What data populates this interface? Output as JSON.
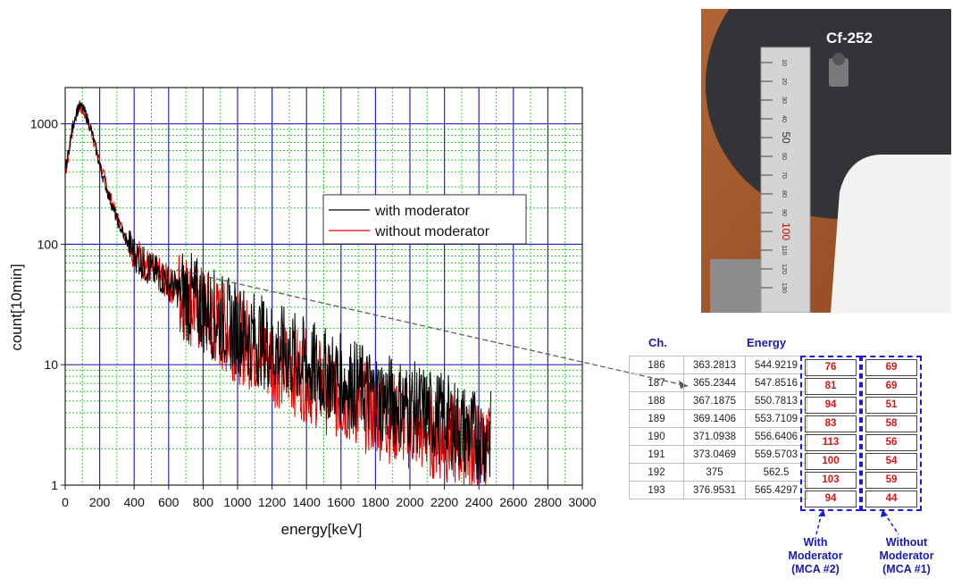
{
  "chart_data": {
    "type": "line",
    "xlabel": "energy[keV]",
    "ylabel": "count[10min]",
    "xlim": [
      0,
      3000
    ],
    "ylim": [
      1,
      2000
    ],
    "yscale": "log",
    "grid": true,
    "legend_position": "top-center",
    "x_ticks": [
      "0",
      "200",
      "400",
      "600",
      "800",
      "1000",
      "1200",
      "1400",
      "1600",
      "1800",
      "2000",
      "2200",
      "2400",
      "2600",
      "2800",
      "3000"
    ],
    "y_ticks": [
      "1",
      "10",
      "100",
      "1000"
    ],
    "series": [
      {
        "name": "with moderator",
        "color": "#000000",
        "x": [
          0,
          20,
          40,
          60,
          80,
          100,
          120,
          150,
          180,
          200,
          250,
          300,
          350,
          400,
          450,
          500,
          550,
          600,
          650,
          700,
          800,
          900,
          1000,
          1100,
          1200,
          1300,
          1400,
          1500,
          1600,
          1700,
          1800,
          1900,
          2000,
          2100,
          2200,
          2300,
          2400,
          2470
        ],
        "y": [
          400,
          600,
          900,
          1200,
          1400,
          1350,
          1200,
          900,
          600,
          450,
          260,
          160,
          110,
          85,
          70,
          60,
          55,
          48,
          42,
          38,
          30,
          24,
          20,
          17,
          14,
          12,
          10,
          8.5,
          7.5,
          6.5,
          5.5,
          5,
          4.5,
          4,
          3.5,
          3,
          2.5,
          2.5
        ]
      },
      {
        "name": "without moderator",
        "color": "#e00000",
        "x": [
          0,
          20,
          40,
          60,
          80,
          100,
          120,
          150,
          180,
          200,
          250,
          300,
          350,
          400,
          450,
          500,
          550,
          600,
          650,
          700,
          800,
          900,
          1000,
          1100,
          1200,
          1300,
          1400,
          1500,
          1600,
          1700,
          1800,
          1900,
          2000,
          2100,
          2200,
          2300,
          2400,
          2470
        ],
        "y": [
          380,
          550,
          850,
          1150,
          1350,
          1300,
          1150,
          880,
          620,
          480,
          280,
          170,
          115,
          88,
          72,
          62,
          55,
          47,
          41,
          36,
          27,
          21,
          17,
          14,
          11,
          9.5,
          8,
          6.5,
          5.5,
          4.8,
          4,
          3.6,
          3.2,
          2.8,
          2.5,
          2.2,
          2,
          2
        ]
      }
    ]
  },
  "photo": {
    "label": "Cf-252",
    "ruler_numbers": [
      "10",
      "20",
      "30",
      "40",
      "50",
      "60",
      "70",
      "80",
      "90",
      "100",
      "110",
      "120",
      "130"
    ]
  },
  "table": {
    "header_ch": "Ch.",
    "header_energy": "Energy",
    "rows": [
      {
        "ch": "186",
        "a": "363.2813",
        "energy": "544.9219",
        "with": "76",
        "without": "69"
      },
      {
        "ch": "187",
        "a": "365.2344",
        "energy": "547.8516",
        "with": "81",
        "without": "69"
      },
      {
        "ch": "188",
        "a": "367.1875",
        "energy": "550.7813",
        "with": "94",
        "without": "51"
      },
      {
        "ch": "189",
        "a": "369.1406",
        "energy": "553.7109",
        "with": "83",
        "without": "58"
      },
      {
        "ch": "190",
        "a": "371.0938",
        "energy": "556.6406",
        "with": "113",
        "without": "56"
      },
      {
        "ch": "191",
        "a": "373.0469",
        "energy": "559.5703",
        "with": "100",
        "without": "54"
      },
      {
        "ch": "192",
        "a": "375",
        "energy": "562.5",
        "with": "103",
        "without": "59"
      },
      {
        "ch": "193",
        "a": "376.9531",
        "energy": "565.4297",
        "with": "94",
        "without": "44"
      }
    ],
    "label_with": [
      "With",
      "Moderator",
      "(MCA #2)"
    ],
    "label_without": [
      "Without",
      "Moderator",
      "(MCA #1)"
    ]
  },
  "colors": {
    "major_grid": "#2a2ab8",
    "minor_grid": "#33cc33",
    "accent_blue": "#1a1ab0",
    "highlight_red": "#d01818"
  }
}
